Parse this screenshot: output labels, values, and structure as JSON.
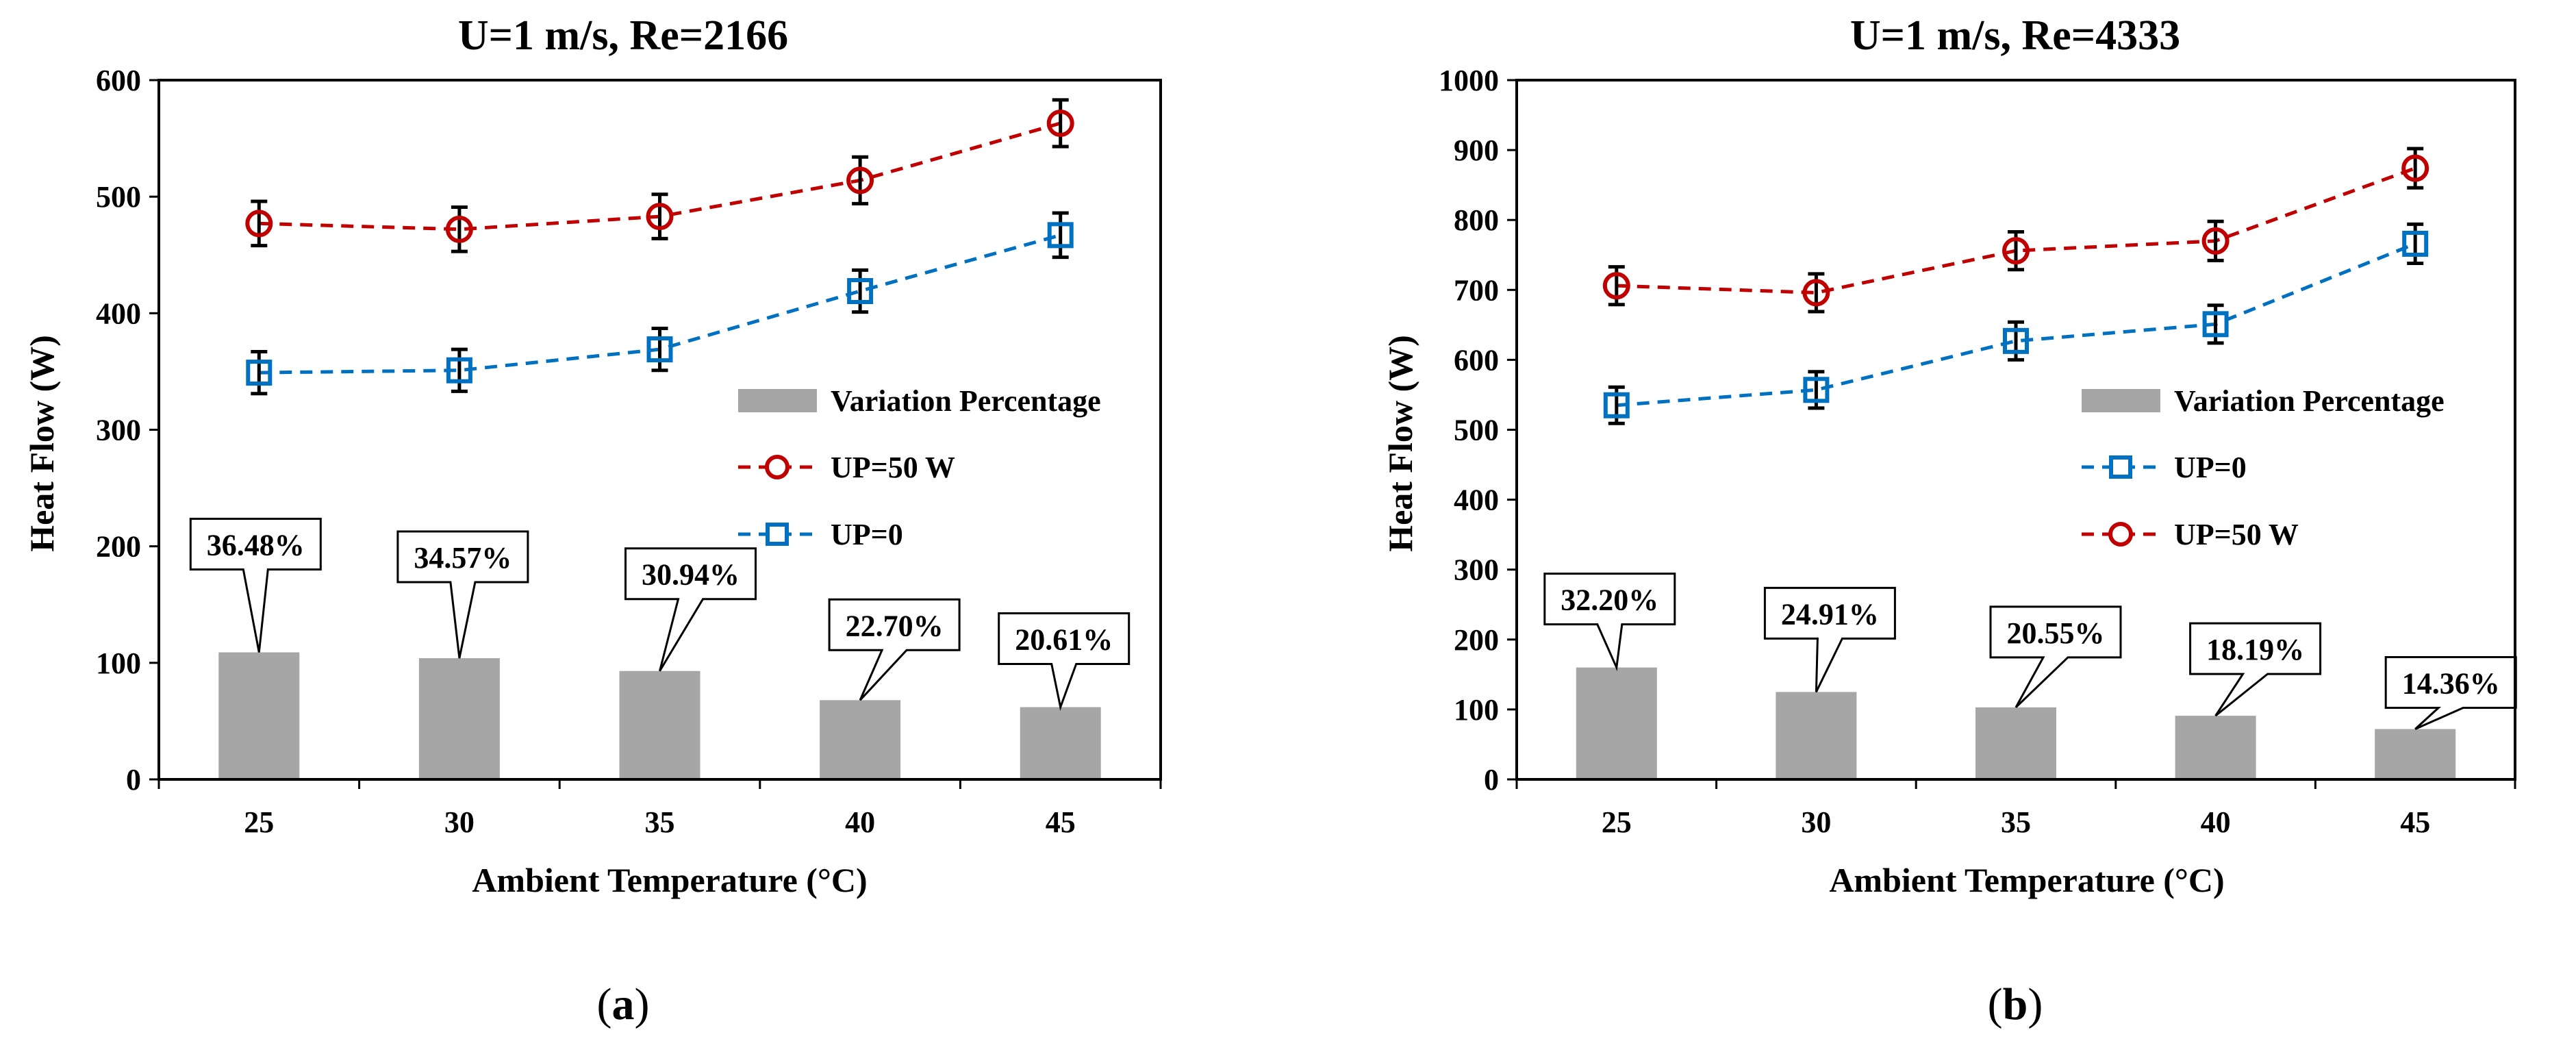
{
  "chart_data": [
    {
      "type": "line",
      "panel_label": "a",
      "title": "U=1 m/s, Re=2166",
      "xlabel": "Ambient Temperature  (°C)",
      "ylabel": "Heat Flow (W)",
      "categories": [
        "25",
        "30",
        "35",
        "40",
        "45"
      ],
      "ylim": [
        0,
        600
      ],
      "yticks": [
        0,
        100,
        200,
        300,
        400,
        500,
        600
      ],
      "legend_position": "right",
      "legend_order": [
        "Variation Percentage",
        "UP=50 W",
        "UP=0"
      ],
      "series": [
        {
          "name": "UP=50 W",
          "kind": "line",
          "marker": "circle",
          "color": "#C00000",
          "values": [
            477,
            472,
            483,
            514,
            563
          ],
          "error": [
            19,
            19,
            19,
            20,
            20
          ]
        },
        {
          "name": "UP=0",
          "kind": "line",
          "marker": "square",
          "color": "#0070C0",
          "values": [
            349,
            351,
            369,
            419,
            467
          ],
          "error": [
            18,
            18,
            18,
            18,
            19
          ]
        },
        {
          "name": "Variation Percentage",
          "kind": "bar",
          "color": "#A6A6A6",
          "values": [
            109,
            104,
            93,
            68,
            62
          ],
          "labels": [
            "36.48%",
            "34.57%",
            "30.94%",
            "22.70%",
            "20.61%"
          ]
        }
      ]
    },
    {
      "type": "line",
      "panel_label": "b",
      "title": "U=1 m/s, Re=4333",
      "xlabel": "Ambient Temperature  (°C)",
      "ylabel": "Heat Flow (W)",
      "categories": [
        "25",
        "30",
        "35",
        "40",
        "45"
      ],
      "ylim": [
        0,
        1000
      ],
      "yticks": [
        0,
        100,
        200,
        300,
        400,
        500,
        600,
        700,
        800,
        900,
        1000
      ],
      "legend_position": "right",
      "legend_order": [
        "Variation Percentage",
        "UP=0",
        "UP=50 W"
      ],
      "series": [
        {
          "name": "UP=50 W",
          "kind": "line",
          "marker": "circle",
          "color": "#C00000",
          "values": [
            706,
            696,
            756,
            770,
            874
          ],
          "error": [
            27,
            27,
            27,
            28,
            28
          ]
        },
        {
          "name": "UP=0",
          "kind": "line",
          "marker": "square",
          "color": "#0070C0",
          "values": [
            535,
            557,
            627,
            651,
            766
          ],
          "error": [
            26,
            26,
            27,
            27,
            28
          ]
        },
        {
          "name": "Variation Percentage",
          "kind": "bar",
          "color": "#A6A6A6",
          "values": [
            160,
            125,
            103,
            91,
            72
          ],
          "labels": [
            "32.20%",
            "24.91%",
            "20.55%",
            "18.19%",
            "14.36%"
          ]
        }
      ]
    }
  ]
}
